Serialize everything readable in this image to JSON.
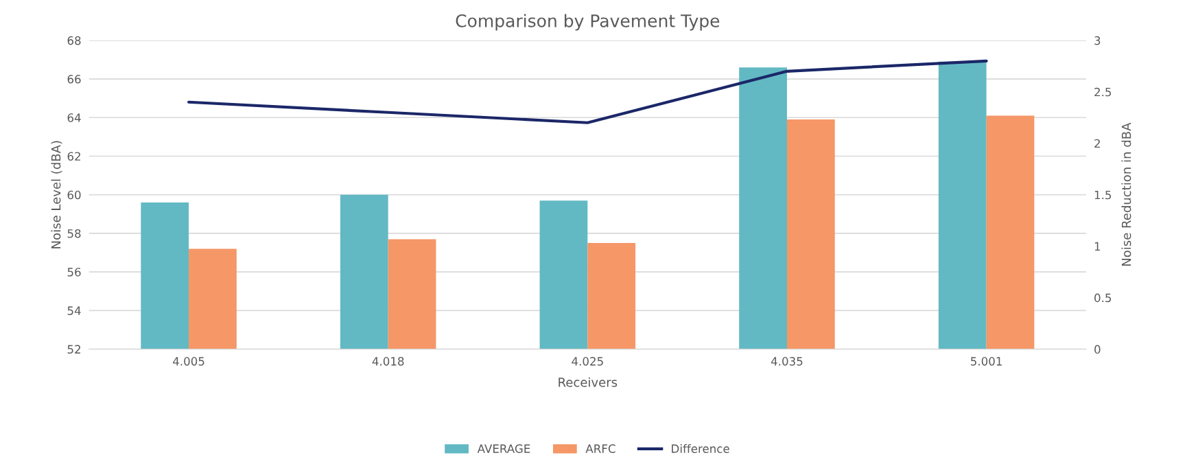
{
  "chart_data": {
    "type": "bar",
    "title": "Comparison by Pavement Type",
    "xlabel": "Receivers",
    "ylabel": "Noise Level (dBA)",
    "y2label": "Noise Reduction in dBA",
    "categories": [
      "4.005",
      "4.018",
      "4.025",
      "4.035",
      "5.001"
    ],
    "series": [
      {
        "name": "AVERAGE",
        "color": "#62b9c3",
        "values": [
          59.6,
          60.0,
          59.7,
          66.6,
          66.9
        ]
      },
      {
        "name": "ARFC",
        "color": "#f59767",
        "values": [
          57.2,
          57.7,
          57.5,
          63.9,
          64.1
        ]
      },
      {
        "name": "Difference",
        "type": "line",
        "axis": "y2",
        "color": "#1b2768",
        "values": [
          2.4,
          2.3,
          2.2,
          2.7,
          2.8
        ]
      }
    ],
    "ylim": [
      52,
      68
    ],
    "yticks": [
      52,
      54,
      56,
      58,
      60,
      62,
      64,
      66,
      68
    ],
    "y2lim": [
      0,
      3
    ],
    "y2ticks": [
      0,
      {
        "value": 0.5,
        "label": "0.5"
      },
      1,
      {
        "value": 1.5,
        "label": "1.5"
      },
      2,
      {
        "value": 2.5,
        "label": "2.5"
      },
      3
    ],
    "grid": "y",
    "legend": "bottom"
  }
}
